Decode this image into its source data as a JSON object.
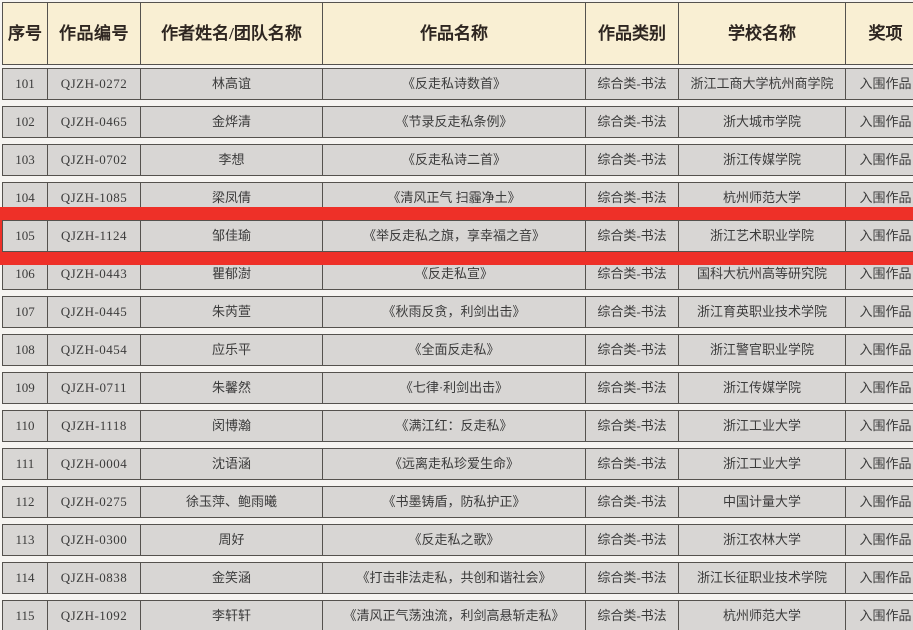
{
  "table": {
    "columns": [
      {
        "key": "index",
        "label": "序号"
      },
      {
        "key": "work_id",
        "label": "作品编号"
      },
      {
        "key": "author",
        "label": "作者姓名/团队名称"
      },
      {
        "key": "title",
        "label": "作品名称"
      },
      {
        "key": "category",
        "label": "作品类别"
      },
      {
        "key": "school",
        "label": "学校名称"
      },
      {
        "key": "award",
        "label": "奖项"
      }
    ],
    "rows": [
      {
        "index": "101",
        "work_id": "QJZH-0272",
        "author": "林高谊",
        "title": "《反走私诗数首》",
        "category": "综合类-书法",
        "school": "浙江工商大学杭州商学院",
        "award": "入围作品",
        "highlighted": false
      },
      {
        "index": "102",
        "work_id": "QJZH-0465",
        "author": "金烨清",
        "title": "《节录反走私条例》",
        "category": "综合类-书法",
        "school": "浙大城市学院",
        "award": "入围作品",
        "highlighted": false
      },
      {
        "index": "103",
        "work_id": "QJZH-0702",
        "author": "李想",
        "title": "《反走私诗二首》",
        "category": "综合类-书法",
        "school": "浙江传媒学院",
        "award": "入围作品",
        "highlighted": false
      },
      {
        "index": "104",
        "work_id": "QJZH-1085",
        "author": "梁凤倩",
        "title": "《清风正气 扫霾净土》",
        "category": "综合类-书法",
        "school": "杭州师范大学",
        "award": "入围作品",
        "highlighted": false
      },
      {
        "index": "105",
        "work_id": "QJZH-1124",
        "author": "邹佳瑜",
        "title": "《举反走私之旗，享幸福之音》",
        "category": "综合类-书法",
        "school": "浙江艺术职业学院",
        "award": "入围作品",
        "highlighted": true
      },
      {
        "index": "106",
        "work_id": "QJZH-0443",
        "author": "瞿郁澍",
        "title": "《反走私宣》",
        "category": "综合类-书法",
        "school": "国科大杭州高等研究院",
        "award": "入围作品",
        "highlighted": false
      },
      {
        "index": "107",
        "work_id": "QJZH-0445",
        "author": "朱芮萱",
        "title": "《秋雨反贪，利剑出击》",
        "category": "综合类-书法",
        "school": "浙江育英职业技术学院",
        "award": "入围作品",
        "highlighted": false
      },
      {
        "index": "108",
        "work_id": "QJZH-0454",
        "author": "应乐平",
        "title": "《全面反走私》",
        "category": "综合类-书法",
        "school": "浙江警官职业学院",
        "award": "入围作品",
        "highlighted": false
      },
      {
        "index": "109",
        "work_id": "QJZH-0711",
        "author": "朱馨然",
        "title": "《七律·利剑出击》",
        "category": "综合类-书法",
        "school": "浙江传媒学院",
        "award": "入围作品",
        "highlighted": false
      },
      {
        "index": "110",
        "work_id": "QJZH-1118",
        "author": "闵博瀚",
        "title": "《满江红：反走私》",
        "category": "综合类-书法",
        "school": "浙江工业大学",
        "award": "入围作品",
        "highlighted": false
      },
      {
        "index": "111",
        "work_id": "QJZH-0004",
        "author": "沈语涵",
        "title": "《远离走私珍爱生命》",
        "category": "综合类-书法",
        "school": "浙江工业大学",
        "award": "入围作品",
        "highlighted": false
      },
      {
        "index": "112",
        "work_id": "QJZH-0275",
        "author": "徐玉萍、鲍雨曦",
        "title": "《书墨铸盾，防私护正》",
        "category": "综合类-书法",
        "school": "中国计量大学",
        "award": "入围作品",
        "highlighted": false
      },
      {
        "index": "113",
        "work_id": "QJZH-0300",
        "author": "周好",
        "title": "《反走私之歌》",
        "category": "综合类-书法",
        "school": "浙江农林大学",
        "award": "入围作品",
        "highlighted": false
      },
      {
        "index": "114",
        "work_id": "QJZH-0838",
        "author": "金笑涵",
        "title": "《打击非法走私，共创和谐社会》",
        "category": "综合类-书法",
        "school": "浙江长征职业技术学院",
        "award": "入围作品",
        "highlighted": false
      },
      {
        "index": "115",
        "work_id": "QJZH-1092",
        "author": "李轩轩",
        "title": "《清风正气荡浊流，利剑高悬斩走私》",
        "category": "综合类-书法",
        "school": "杭州师范大学",
        "award": "入围作品",
        "highlighted": false
      }
    ],
    "highlighted_row_index": "105"
  },
  "colors": {
    "header_background": "#f9efd3",
    "body_cell_background": "#d8d6d4",
    "border": "#55524e",
    "highlight_red": "#ee3028"
  }
}
